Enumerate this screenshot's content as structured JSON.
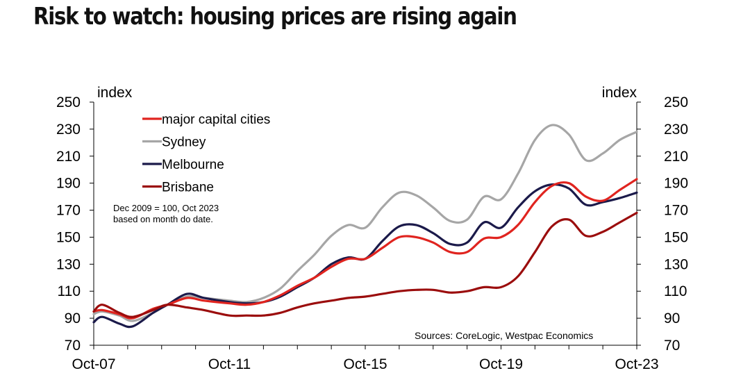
{
  "title": "Risk to watch: housing prices are rising again",
  "chart_data": {
    "type": "line",
    "title": "Risk to watch: housing prices are rising again",
    "ylabel_left": "index",
    "ylabel_right": "index",
    "ylim": [
      70,
      250
    ],
    "yticks": [
      70,
      90,
      110,
      130,
      150,
      170,
      190,
      210,
      230,
      250
    ],
    "xticks": [
      "Oct-07",
      "Oct-11",
      "Oct-15",
      "Oct-19",
      "Oct-23"
    ],
    "x_start": "Oct-07",
    "x_end": "Oct-23",
    "grid": false,
    "legend_position": "top-left",
    "note": "Dec 2009 = 100, Oct 2023 based on month do date.",
    "source": "Sources: CoreLogic, Westpac Economics",
    "x_years": [
      2007.75,
      2008.0,
      2008.5,
      2008.9,
      2009.5,
      2009.92,
      2010.5,
      2011.0,
      2011.75,
      2012.25,
      2012.75,
      2013.25,
      2013.75,
      2014.25,
      2014.75,
      2015.25,
      2015.75,
      2016.25,
      2016.75,
      2017.25,
      2017.75,
      2018.25,
      2018.75,
      2019.25,
      2019.75,
      2020.25,
      2020.75,
      2021.25,
      2021.75,
      2022.25,
      2022.75,
      2023.25,
      2023.75
    ],
    "series": [
      {
        "name": "major capital cities",
        "color": "#e0241f",
        "values": [
          95,
          96,
          93,
          90,
          97,
          100,
          105,
          103,
          101,
          100,
          102,
          107,
          114,
          120,
          128,
          134,
          134,
          142,
          150,
          150,
          146,
          139,
          139,
          149,
          150,
          159,
          176,
          188,
          190,
          180,
          177,
          185,
          193
        ]
      },
      {
        "name": "Sydney",
        "color": "#a6a6a6",
        "values": [
          93,
          95,
          92,
          88,
          94,
          100,
          106,
          105,
          103,
          102,
          105,
          112,
          125,
          137,
          151,
          159,
          157,
          172,
          183,
          181,
          172,
          162,
          163,
          180,
          178,
          197,
          222,
          233,
          226,
          207,
          212,
          222,
          228
        ]
      },
      {
        "name": "Melbourne",
        "color": "#1b1a4a",
        "values": [
          87,
          91,
          86,
          84,
          94,
          100,
          108,
          105,
          102,
          101,
          102,
          106,
          113,
          120,
          130,
          135,
          134,
          147,
          158,
          159,
          153,
          145,
          146,
          161,
          157,
          172,
          184,
          189,
          186,
          174,
          176,
          179,
          183
        ]
      },
      {
        "name": "Brisbane",
        "color": "#9b0d0d",
        "values": [
          95,
          100,
          94,
          91,
          96,
          100,
          98,
          96,
          92,
          92,
          92,
          94,
          98,
          101,
          103,
          105,
          106,
          108,
          110,
          111,
          111,
          109,
          110,
          113,
          113,
          121,
          139,
          158,
          163,
          151,
          154,
          161,
          168
        ]
      }
    ]
  }
}
